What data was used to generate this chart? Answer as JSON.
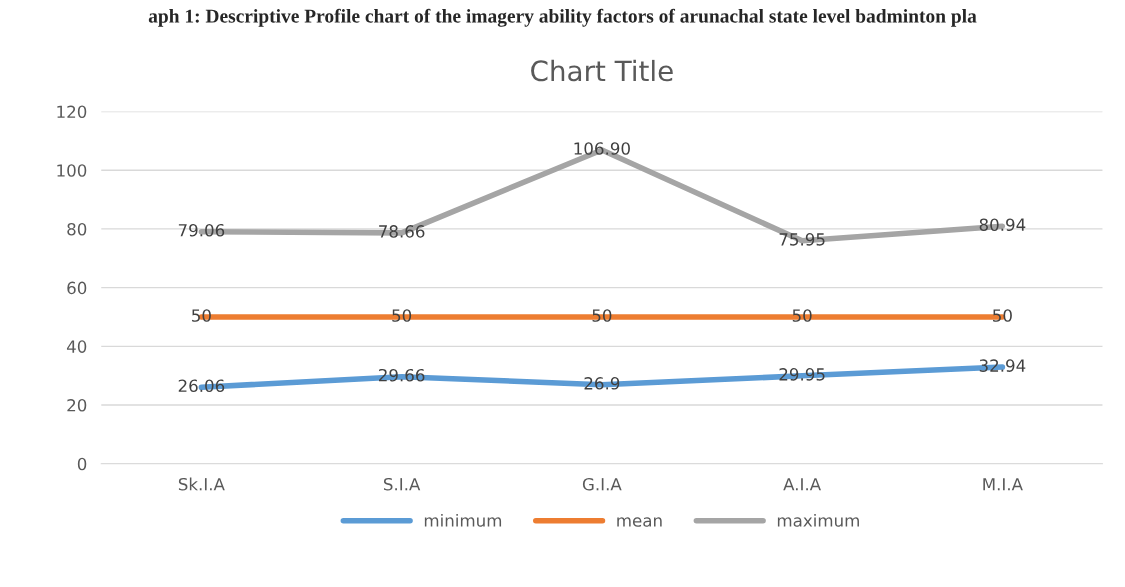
{
  "chart_data": {
    "type": "line",
    "title": "Chart Title",
    "annotations": [
      "aph 1: Descriptive Profile chart of the imagery ability factors of arunachal state level badminton pla"
    ],
    "categories": [
      "Sk.I.A",
      "S.I.A",
      "G.I.A",
      "A.I.A",
      "M.I.A"
    ],
    "series": [
      {
        "name": "minimum",
        "color": "#5b9bd5",
        "values": [
          26.06,
          29.66,
          26.9,
          29.95,
          32.94
        ],
        "value_labels": [
          "26.06",
          "29.66",
          "26.9",
          "29.95",
          "32.94"
        ]
      },
      {
        "name": "mean",
        "color": "#ed7d31",
        "values": [
          50,
          50,
          50,
          50,
          50
        ],
        "value_labels": [
          "50",
          "50",
          "50",
          "50",
          "50"
        ]
      },
      {
        "name": "maximum",
        "color": "#a5a5a5",
        "values": [
          79.06,
          78.66,
          106.9,
          75.95,
          80.94
        ],
        "value_labels": [
          "79.06",
          "78.66",
          "106.90",
          "75.95",
          "80.94"
        ]
      }
    ],
    "ylim": [
      0,
      120
    ],
    "yticks": [
      0,
      20,
      40,
      60,
      80,
      100,
      120
    ],
    "grid": "y",
    "legend": "bottom",
    "marker": "none",
    "line_style": "solid"
  }
}
